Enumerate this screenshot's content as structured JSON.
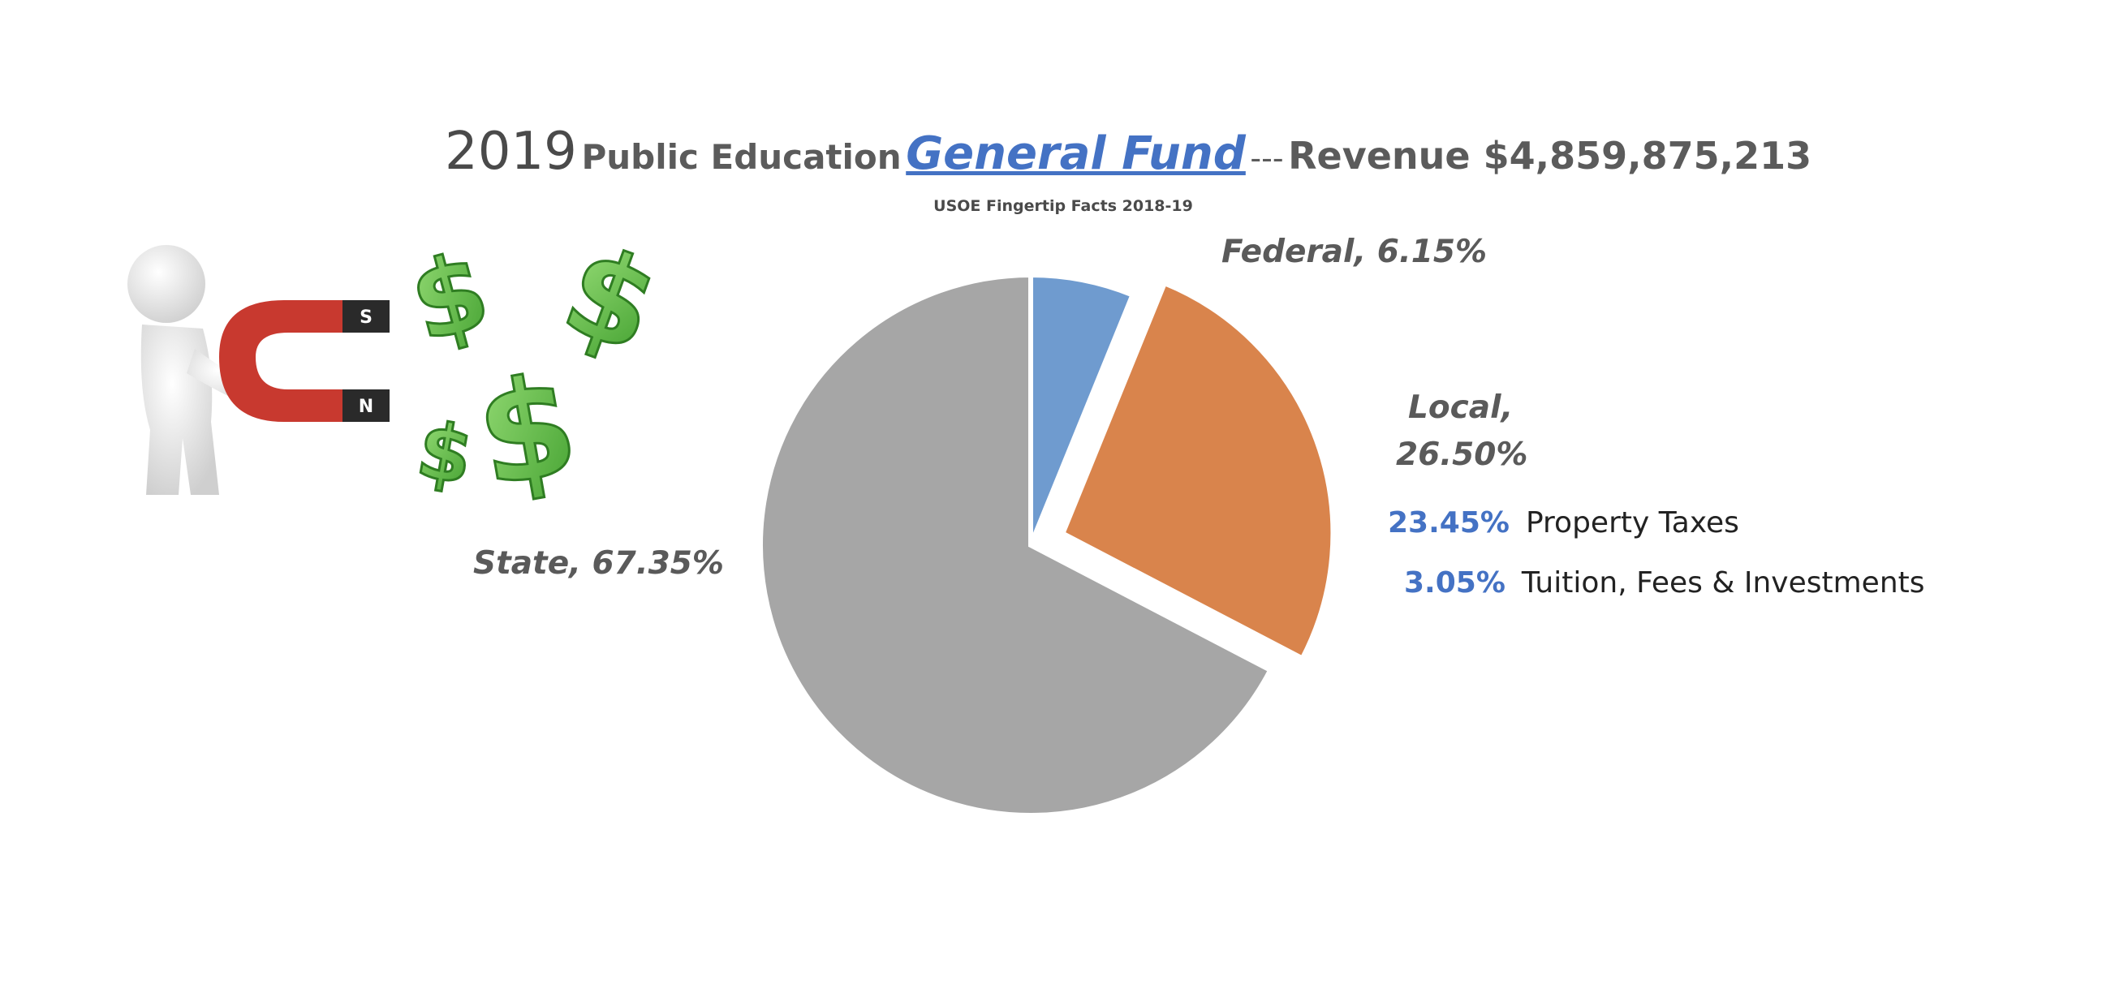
{
  "header": {
    "year": "2019",
    "title_part1": "Public Education",
    "title_highlight": "General Fund",
    "separator": "---",
    "revenue_text": "Revenue $4,859,875,213",
    "source": "USOE Fingertip Facts 2018-19"
  },
  "illustration": {
    "magnet_pole_s": "S",
    "magnet_pole_n": "N",
    "money_symbol": "$"
  },
  "chart_data": {
    "type": "pie",
    "title": "2019 Public Education General Fund --- Revenue $4,859,875,213",
    "subtitle": "USOE Fingertip Facts 2018-19",
    "slices": [
      {
        "label": "Federal",
        "value": 6.15,
        "display": "Federal, 6.15%",
        "color": "#6f9bcf",
        "exploded": false
      },
      {
        "label": "Local",
        "value": 26.5,
        "display_line1": "Local,",
        "display_line2": "26.50%",
        "color": "#d9844c",
        "exploded": true
      },
      {
        "label": "State",
        "value": 67.35,
        "display": "State, 67.35%",
        "color": "#a6a6a6",
        "exploded": false
      }
    ],
    "local_breakdown": [
      {
        "percent": "23.45%",
        "label": "Property Taxes"
      },
      {
        "percent": "3.05%",
        "label": "Tuition, Fees & Investments"
      }
    ]
  }
}
